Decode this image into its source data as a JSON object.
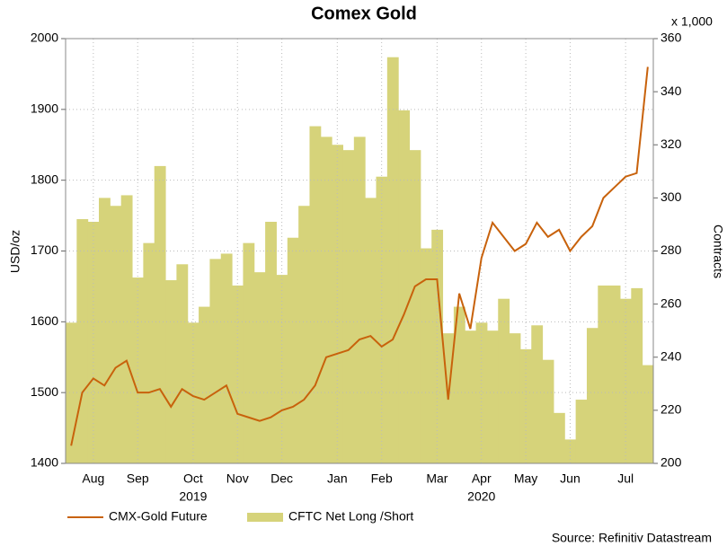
{
  "chart_data": {
    "type": "line_area_dual",
    "title": "Comex Gold",
    "y_label": "USD/oz",
    "y2_label": "Contracts",
    "y2_multiplier": "x 1,000",
    "source": "Source: Refinitiv Datastream",
    "year_labels": [
      "2019",
      "2020"
    ],
    "categories": [
      null,
      null,
      "Aug",
      null,
      null,
      null,
      "Sep",
      null,
      null,
      null,
      null,
      "Oct",
      null,
      null,
      null,
      "Nov",
      null,
      null,
      null,
      "Dec",
      null,
      null,
      null,
      null,
      "Jan",
      null,
      null,
      null,
      "Feb",
      null,
      null,
      null,
      null,
      "Mar",
      null,
      null,
      null,
      "Apr",
      null,
      null,
      null,
      "May",
      null,
      null,
      null,
      "Jun",
      null,
      null,
      null,
      null,
      "Jul",
      null,
      null
    ],
    "ylim": [
      1400,
      2000
    ],
    "yticks": [
      1400,
      1500,
      1600,
      1700,
      1800,
      1900,
      2000
    ],
    "y2lim": [
      200,
      360
    ],
    "y2ticks": [
      200,
      220,
      240,
      260,
      280,
      300,
      320,
      340,
      360
    ],
    "grid": true,
    "series": [
      {
        "name": "CMX-Gold Future",
        "type": "line",
        "color": "#c8620c",
        "values": [
          1425,
          1500,
          1520,
          1510,
          1535,
          1545,
          1500,
          1500,
          1505,
          1480,
          1505,
          1495,
          1490,
          1500,
          1510,
          1470,
          1465,
          1460,
          1465,
          1475,
          1480,
          1490,
          1510,
          1550,
          1555,
          1560,
          1575,
          1580,
          1565,
          1575,
          1610,
          1650,
          1660,
          1660,
          1490,
          1640,
          1590,
          1690,
          1740,
          1720,
          1700,
          1710,
          1740,
          1720,
          1730,
          1700,
          1720,
          1735,
          1775,
          1790,
          1805,
          1810,
          1960
        ]
      },
      {
        "name": "CFTC Net Long /Short",
        "type": "area",
        "axis": "y2",
        "color": "#d6d37a",
        "values": [
          253,
          292,
          291,
          300,
          297,
          301,
          270,
          283,
          312,
          269,
          275,
          253,
          259,
          277,
          279,
          267,
          283,
          272,
          291,
          271,
          285,
          297,
          327,
          323,
          320,
          318,
          323,
          300,
          308,
          353,
          333,
          318,
          281,
          288,
          249,
          259,
          250,
          253,
          250,
          262,
          249,
          243,
          252,
          239,
          219,
          209,
          224,
          251,
          267,
          267,
          262,
          266,
          237
        ]
      }
    ]
  }
}
